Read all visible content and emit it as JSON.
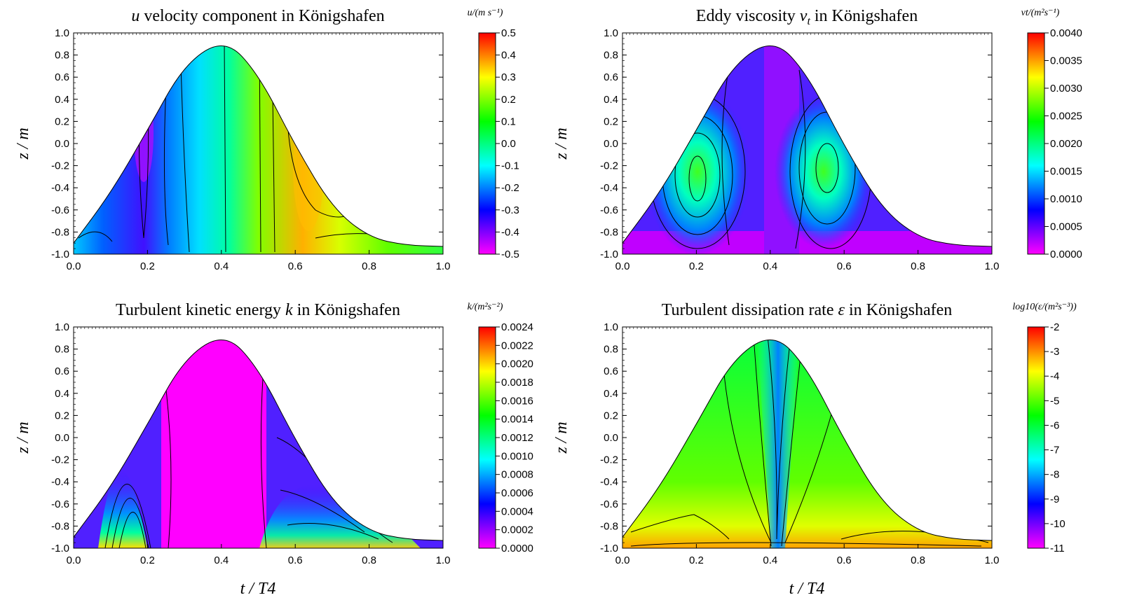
{
  "chart_data": [
    {
      "type": "heatmap",
      "title": "u velocity component in Königshafen",
      "title_parts": {
        "symbol": "u",
        "rest": " velocity component in Königshafen"
      },
      "xlabel": "",
      "ylabel": "z / m",
      "xlim": [
        0.0,
        1.0
      ],
      "ylim": [
        -1.0,
        1.0
      ],
      "x_ticks": [
        "0.0",
        "0.2",
        "0.4",
        "0.6",
        "0.8",
        "1.0"
      ],
      "y_ticks": [
        "-1.0",
        "-0.8",
        "-0.6",
        "-0.4",
        "-0.2",
        "0.0",
        "0.2",
        "0.4",
        "0.6",
        "0.8",
        "1.0"
      ],
      "colorbar_label": "u/(m s⁻¹)",
      "colorbar_ticks": [
        "-0.5",
        "-0.4",
        "-0.3",
        "-0.2",
        "-0.1",
        "0.0",
        "0.1",
        "0.2",
        "0.3",
        "0.4",
        "0.5"
      ],
      "colorbar_range": [
        -0.5,
        0.5
      ],
      "surface": [
        {
          "x": 0.0,
          "z": -0.9
        },
        {
          "x": 0.1,
          "z": -0.45
        },
        {
          "x": 0.2,
          "z": 0.12
        },
        {
          "x": 0.3,
          "z": 0.72
        },
        {
          "x": 0.41,
          "z": 0.95
        },
        {
          "x": 0.5,
          "z": 0.63
        },
        {
          "x": 0.6,
          "z": -0.02
        },
        {
          "x": 0.7,
          "z": -0.58
        },
        {
          "x": 0.8,
          "z": -0.85
        },
        {
          "x": 0.9,
          "z": -0.92
        },
        {
          "x": 1.0,
          "z": -0.93
        }
      ]
    },
    {
      "type": "heatmap",
      "title": "Eddy viscosity νt in Königshafen",
      "title_parts": {
        "prefix": "Eddy viscosity ",
        "symbol": "ν",
        "sub": "t",
        "rest": " in Königshafen"
      },
      "xlabel": "",
      "ylabel": "z / m",
      "xlim": [
        0.0,
        1.0
      ],
      "ylim": [
        -1.0,
        1.0
      ],
      "x_ticks": [
        "0.0",
        "0.2",
        "0.4",
        "0.6",
        "0.8",
        "1.0"
      ],
      "y_ticks": [
        "-1.0",
        "-0.8",
        "-0.6",
        "-0.4",
        "-0.2",
        "0.0",
        "0.2",
        "0.4",
        "0.6",
        "0.8",
        "1.0"
      ],
      "colorbar_label": "νt/(m²s⁻¹)",
      "colorbar_ticks": [
        "0.0000",
        "0.0005",
        "0.0010",
        "0.0015",
        "0.0020",
        "0.0025",
        "0.0030",
        "0.0035",
        "0.0040"
      ],
      "colorbar_range": [
        0.0,
        0.004
      ]
    },
    {
      "type": "heatmap",
      "title": "Turbulent kinetic energy k in Königshafen",
      "title_parts": {
        "prefix": "Turbulent kinetic energy ",
        "symbol": "k",
        "rest": " in Königshafen"
      },
      "xlabel": "t / T4",
      "ylabel": "z / m",
      "xlim": [
        0.0,
        1.0
      ],
      "ylim": [
        -1.0,
        1.0
      ],
      "x_ticks": [
        "0.0",
        "0.2",
        "0.4",
        "0.6",
        "0.8",
        "1.0"
      ],
      "y_ticks": [
        "-1.0",
        "-0.8",
        "-0.6",
        "-0.4",
        "-0.2",
        "0.0",
        "0.2",
        "0.4",
        "0.6",
        "0.8",
        "1.0"
      ],
      "colorbar_label": "k/(m²s⁻²)",
      "colorbar_ticks": [
        "0.0000",
        "0.0002",
        "0.0004",
        "0.0006",
        "0.0008",
        "0.0010",
        "0.0012",
        "0.0014",
        "0.0016",
        "0.0018",
        "0.0020",
        "0.0022",
        "0.0024"
      ],
      "colorbar_range": [
        0.0,
        0.0024
      ]
    },
    {
      "type": "heatmap",
      "title": "Turbulent dissipation rate ε in Königshafen",
      "title_parts": {
        "prefix": "Turbulent dissipation rate ",
        "symbol": "ε",
        "rest": " in Königshafen"
      },
      "xlabel": "t / T4",
      "ylabel": "z / m",
      "xlim": [
        0.0,
        1.0
      ],
      "ylim": [
        -1.0,
        1.0
      ],
      "x_ticks": [
        "0.0",
        "0.2",
        "0.4",
        "0.6",
        "0.8",
        "1.0"
      ],
      "y_ticks": [
        "-1.0",
        "-0.8",
        "-0.6",
        "-0.4",
        "-0.2",
        "0.0",
        "0.2",
        "0.4",
        "0.6",
        "0.8",
        "1.0"
      ],
      "colorbar_label": "log10(ε/(m²s⁻³))",
      "colorbar_ticks": [
        "-11",
        "-10",
        "-9",
        "-8",
        "-7",
        "-6",
        "-5",
        "-4",
        "-3",
        "-2"
      ],
      "colorbar_range": [
        -11,
        -2
      ]
    }
  ],
  "colormap": [
    "#ff00ff",
    "#0000ff",
    "#00ffff",
    "#00ff00",
    "#ffff00",
    "#ff0000"
  ]
}
